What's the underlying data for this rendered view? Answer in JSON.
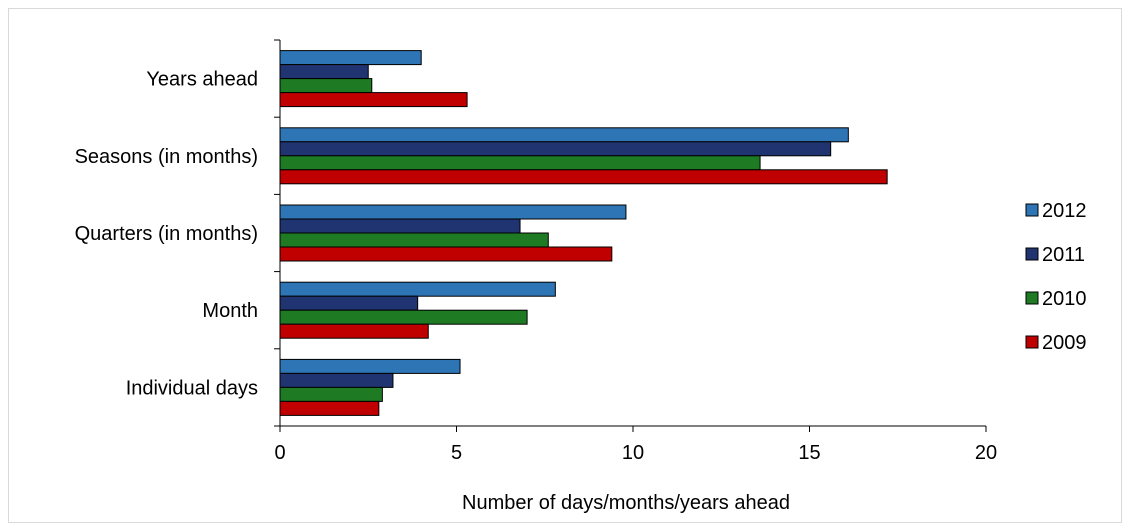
{
  "chart_data": {
    "type": "bar",
    "orientation": "horizontal",
    "categories": [
      "Years ahead",
      "Seasons (in months)",
      "Quarters (in months)",
      "Month",
      "Individual days"
    ],
    "series": [
      {
        "name": "2012",
        "color": "#2e75b6",
        "values": [
          4.0,
          16.1,
          9.8,
          7.8,
          5.1
        ]
      },
      {
        "name": "2011",
        "color": "#1f3470",
        "values": [
          2.5,
          15.6,
          6.8,
          3.9,
          3.2
        ]
      },
      {
        "name": "2010",
        "color": "#1e7b24",
        "values": [
          2.6,
          13.6,
          7.6,
          7.0,
          2.9
        ]
      },
      {
        "name": "2009",
        "color": "#c00000",
        "values": [
          5.3,
          17.2,
          9.4,
          4.2,
          2.8
        ]
      }
    ],
    "xlim": [
      0,
      20
    ],
    "xticks": [
      "0",
      "5",
      "10",
      "15",
      "20"
    ],
    "xlabel": "Number of days/months/years ahead",
    "ylabel": "",
    "legend": "right",
    "grid": false
  }
}
